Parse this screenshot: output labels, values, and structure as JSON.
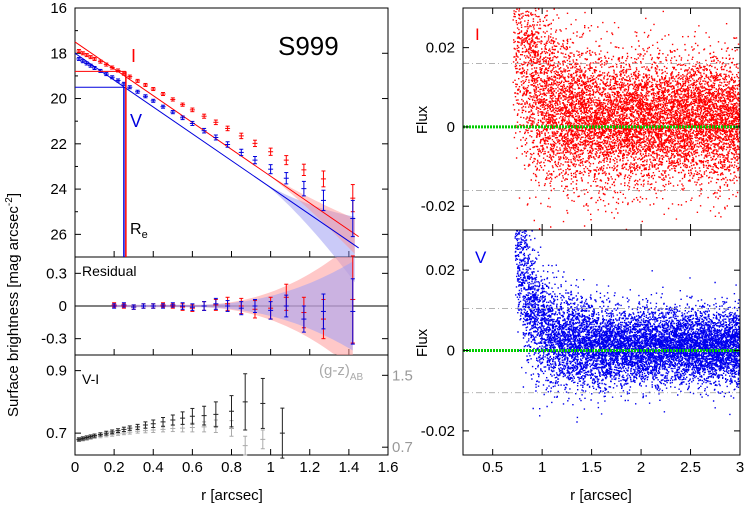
{
  "chart_data": [
    {
      "id": "sb-profile",
      "type": "scatter",
      "title": "S999",
      "ylabel": "Surface brightness [mag arcsec⁻²]",
      "ylabel_main": "Surface brightness [mag arcsec",
      "ylabel_sup": "-2",
      "ylabel_close": "]",
      "xlim": [
        0,
        1.6
      ],
      "ylim": [
        27,
        16
      ],
      "yticks": [
        "16",
        "18",
        "20",
        "22",
        "24",
        "26"
      ],
      "band_labels": {
        "I": "I",
        "V": "V"
      },
      "re_label": "R",
      "re_sub": "e",
      "re_values": {
        "I": 0.26,
        "V": 0.25
      },
      "re_sb": {
        "I": 18.8,
        "V": 19.5
      },
      "series": [
        {
          "name": "I",
          "color": "#ff0000",
          "x": [
            0.02,
            0.04,
            0.06,
            0.08,
            0.1,
            0.13,
            0.16,
            0.19,
            0.22,
            0.25,
            0.28,
            0.32,
            0.36,
            0.4,
            0.45,
            0.5,
            0.55,
            0.6,
            0.66,
            0.72,
            0.78,
            0.85,
            0.92,
            1.0,
            1.08,
            1.17,
            1.27,
            1.42
          ],
          "y": [
            17.9,
            18.0,
            18.08,
            18.17,
            18.25,
            18.37,
            18.5,
            18.63,
            18.76,
            18.9,
            19.03,
            19.22,
            19.4,
            19.58,
            19.8,
            20.04,
            20.27,
            20.5,
            20.78,
            21.05,
            21.32,
            21.65,
            21.98,
            22.35,
            22.72,
            23.15,
            23.55,
            24.4
          ],
          "err": [
            0.05,
            0.05,
            0.05,
            0.05,
            0.05,
            0.05,
            0.05,
            0.05,
            0.05,
            0.05,
            0.05,
            0.05,
            0.06,
            0.06,
            0.06,
            0.07,
            0.07,
            0.08,
            0.09,
            0.1,
            0.1,
            0.12,
            0.14,
            0.16,
            0.2,
            0.25,
            0.35,
            0.6
          ],
          "fit": [
            [
              0.0,
              17.5
            ],
            [
              1.45,
              26.1
            ]
          ]
        },
        {
          "name": "V",
          "color": "#0000dd",
          "x": [
            0.02,
            0.04,
            0.06,
            0.08,
            0.1,
            0.13,
            0.16,
            0.19,
            0.22,
            0.25,
            0.28,
            0.32,
            0.36,
            0.4,
            0.45,
            0.5,
            0.55,
            0.6,
            0.66,
            0.72,
            0.78,
            0.85,
            0.92,
            1.0,
            1.08,
            1.17,
            1.27,
            1.42
          ],
          "y": [
            18.25,
            18.35,
            18.45,
            18.55,
            18.65,
            18.78,
            18.92,
            19.06,
            19.2,
            19.35,
            19.5,
            19.7,
            19.9,
            20.1,
            20.36,
            20.6,
            20.85,
            21.1,
            21.42,
            21.72,
            22.03,
            22.38,
            22.72,
            23.12,
            23.52,
            23.98,
            24.5,
            25.3
          ],
          "err": [
            0.05,
            0.05,
            0.05,
            0.05,
            0.05,
            0.05,
            0.05,
            0.05,
            0.05,
            0.05,
            0.05,
            0.05,
            0.06,
            0.06,
            0.06,
            0.07,
            0.08,
            0.09,
            0.1,
            0.11,
            0.12,
            0.14,
            0.16,
            0.2,
            0.25,
            0.32,
            0.45,
            0.8
          ],
          "fit": [
            [
              0.0,
              18.0
            ],
            [
              1.45,
              26.6
            ]
          ]
        }
      ]
    },
    {
      "id": "residual",
      "type": "scatter",
      "label": "Residual",
      "xlim": [
        0,
        1.6
      ],
      "ylim": [
        -0.45,
        0.45
      ],
      "yticks": [
        "0.3",
        "0",
        "-0.3"
      ],
      "ytick_values": [
        0.3,
        0,
        -0.3
      ],
      "series": [
        {
          "name": "I",
          "color": "#ff0000",
          "x": [
            0.2,
            0.25,
            0.3,
            0.35,
            0.4,
            0.45,
            0.5,
            0.55,
            0.6,
            0.66,
            0.72,
            0.78,
            0.85,
            0.92,
            1.0,
            1.08,
            1.17,
            1.27,
            1.42
          ],
          "y": [
            0.01,
            0.0,
            -0.01,
            0.0,
            0.0,
            0.01,
            0.0,
            -0.01,
            -0.02,
            0.0,
            0.01,
            0.02,
            0.0,
            -0.03,
            -0.02,
            0.08,
            -0.06,
            -0.12,
            0.06
          ],
          "err": [
            0.02,
            0.02,
            0.02,
            0.02,
            0.02,
            0.02,
            0.02,
            0.03,
            0.03,
            0.04,
            0.05,
            0.06,
            0.07,
            0.08,
            0.1,
            0.12,
            0.14,
            0.18,
            0.4
          ]
        },
        {
          "name": "V",
          "color": "#0000dd",
          "x": [
            0.2,
            0.25,
            0.3,
            0.35,
            0.4,
            0.45,
            0.5,
            0.55,
            0.6,
            0.66,
            0.72,
            0.78,
            0.85,
            0.92,
            1.0,
            1.08,
            1.17,
            1.27,
            1.42
          ],
          "y": [
            0.0,
            0.01,
            -0.01,
            0.0,
            0.0,
            0.0,
            0.01,
            0.0,
            -0.01,
            0.0,
            0.02,
            0.0,
            -0.02,
            0.0,
            -0.04,
            0.0,
            -0.12,
            -0.05,
            -0.05
          ],
          "err": [
            0.02,
            0.02,
            0.02,
            0.02,
            0.02,
            0.02,
            0.02,
            0.03,
            0.03,
            0.04,
            0.05,
            0.05,
            0.06,
            0.06,
            0.08,
            0.1,
            0.12,
            0.16,
            0.3
          ]
        }
      ]
    },
    {
      "id": "color-profile",
      "type": "scatter",
      "label": "V-I",
      "right_label": "(g-z)",
      "right_label_sub": "AB",
      "xlim": [
        0,
        1.6
      ],
      "xticks": [
        "0",
        "0.2",
        "0.4",
        "0.6",
        "0.8",
        "1",
        "1.2",
        "1.4",
        "1.6"
      ],
      "xlabel": "r [arcsec]",
      "ylim": [
        0.63,
        0.95
      ],
      "yticks": [
        "0.9",
        "0.7"
      ],
      "ytick_values": [
        0.9,
        0.7
      ],
      "right_yticks": [
        "1.5",
        "0.7"
      ],
      "right_ytick_values": [
        0.885,
        0.655
      ],
      "series": [
        {
          "name": "V-I",
          "color": "#222222",
          "x": [
            0.02,
            0.04,
            0.06,
            0.08,
            0.1,
            0.13,
            0.16,
            0.19,
            0.22,
            0.25,
            0.28,
            0.32,
            0.36,
            0.4,
            0.45,
            0.5,
            0.55,
            0.6,
            0.66,
            0.72,
            0.8,
            0.87,
            0.96,
            1.06
          ],
          "y": [
            0.68,
            0.683,
            0.686,
            0.689,
            0.692,
            0.696,
            0.7,
            0.704,
            0.708,
            0.712,
            0.716,
            0.72,
            0.726,
            0.73,
            0.736,
            0.742,
            0.748,
            0.754,
            0.756,
            0.76,
            0.77,
            0.8,
            0.795,
            0.7
          ],
          "err": [
            0.005,
            0.005,
            0.005,
            0.005,
            0.005,
            0.005,
            0.006,
            0.006,
            0.006,
            0.007,
            0.007,
            0.008,
            0.01,
            0.012,
            0.014,
            0.016,
            0.02,
            0.025,
            0.03,
            0.04,
            0.05,
            0.09,
            0.08,
            0.08
          ]
        },
        {
          "name": "(g-z)AB",
          "color": "#aaaaaa",
          "x": [
            0.02,
            0.04,
            0.06,
            0.08,
            0.1,
            0.13,
            0.16,
            0.19,
            0.22,
            0.25,
            0.28,
            0.32,
            0.36,
            0.4,
            0.45,
            0.5,
            0.55,
            0.6,
            0.66,
            0.72,
            0.8,
            0.87,
            0.96
          ],
          "y": [
            0.678,
            0.68,
            0.682,
            0.685,
            0.688,
            0.69,
            0.693,
            0.695,
            0.698,
            0.7,
            0.703,
            0.706,
            0.708,
            0.71,
            0.712,
            0.715,
            0.716,
            0.718,
            0.72,
            0.722,
            0.715,
            0.66,
            0.68
          ],
          "err": [
            0.004,
            0.004,
            0.004,
            0.004,
            0.004,
            0.004,
            0.004,
            0.005,
            0.005,
            0.005,
            0.006,
            0.006,
            0.007,
            0.008,
            0.008,
            0.01,
            0.012,
            0.014,
            0.016,
            0.02,
            0.025,
            0.03,
            0.03
          ]
        }
      ]
    },
    {
      "id": "flux-I",
      "type": "scatter",
      "band_label": "I",
      "ylabel": "Flux",
      "xlim": [
        0.2,
        3
      ],
      "ylim": [
        -0.026,
        0.03
      ],
      "yticks": [
        "0.02",
        "0",
        "-0.02"
      ],
      "ytick_values": [
        0.02,
        0,
        -0.02
      ],
      "color": "#ff0000",
      "noise_sigma": 0.0075,
      "envelope": {
        "start_x": 0.7,
        "peak": 0.03,
        "floor": 0.0018,
        "decay": 1.6
      },
      "zero_line_color": "#00cc00",
      "sigma_lines": [
        0.016,
        -0.016
      ]
    },
    {
      "id": "flux-V",
      "type": "scatter",
      "band_label": "V",
      "ylabel": "Flux",
      "xlabel": "r [arcsec]",
      "xlim": [
        0.2,
        3
      ],
      "xticks": [
        "0.5",
        "1",
        "1.5",
        "2",
        "2.5",
        "3"
      ],
      "xtick_values": [
        0.5,
        1,
        1.5,
        2,
        2.5,
        3
      ],
      "ylim": [
        -0.026,
        0.03
      ],
      "yticks": [
        "0.02",
        "0",
        "-0.02"
      ],
      "ytick_values": [
        0.02,
        0,
        -0.02
      ],
      "color": "#0000ee",
      "noise_sigma": 0.0045,
      "envelope": {
        "start_x": 0.72,
        "peak": 0.03,
        "floor": 0.0012,
        "decay": 2.0
      },
      "zero_line_color": "#00cc00",
      "sigma_lines": [
        0.0105,
        -0.0105
      ]
    }
  ]
}
